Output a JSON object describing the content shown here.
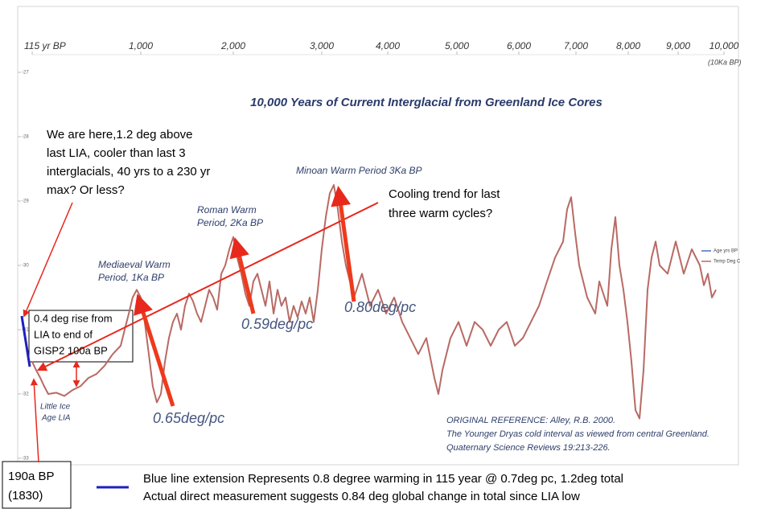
{
  "chart_data": {
    "type": "line",
    "title": "10,000 Years of Current Interglacial from Greenland Ice Cores",
    "x_axis_note": "(10Ka BP)",
    "xlim": [
      115,
      10000
    ],
    "xticks": [
      {
        "value": 115,
        "label": "115 yr BP"
      },
      {
        "value": 1000,
        "label": "1,000"
      },
      {
        "value": 2000,
        "label": "2,000"
      },
      {
        "value": 3000,
        "label": "3,000"
      },
      {
        "value": 4000,
        "label": "4,000"
      },
      {
        "value": 5000,
        "label": "5,000"
      },
      {
        "value": 6000,
        "label": "6,000"
      },
      {
        "value": 7000,
        "label": "7,000"
      },
      {
        "value": 8000,
        "label": "8,000"
      },
      {
        "value": 9000,
        "label": "9,000"
      },
      {
        "value": 10000,
        "label": "10,000"
      }
    ],
    "ylim": [
      -33,
      -26.6
    ],
    "yticks": [
      -33,
      -32,
      -31,
      -30,
      -29,
      -28,
      -27
    ],
    "x": [
      115,
      148,
      181,
      213,
      246,
      312,
      377,
      443,
      508,
      574,
      639,
      705,
      771,
      836,
      869,
      902,
      934,
      967,
      1000,
      1043,
      1087,
      1130,
      1174,
      1217,
      1261,
      1304,
      1348,
      1391,
      1435,
      1478,
      1522,
      1565,
      1609,
      1652,
      1696,
      1739,
      1783,
      1826,
      1870,
      1913,
      1957,
      2000,
      2045,
      2091,
      2136,
      2182,
      2227,
      2273,
      2318,
      2364,
      2409,
      2455,
      2500,
      2545,
      2591,
      2636,
      2682,
      2727,
      2773,
      2818,
      2864,
      2909,
      2955,
      3000,
      3061,
      3122,
      3183,
      3244,
      3305,
      3366,
      3427,
      3488,
      3610,
      3732,
      3854,
      3976,
      4093,
      4209,
      4326,
      4442,
      4558,
      4674,
      4733,
      4791,
      4907,
      5026,
      5156,
      5286,
      5416,
      5545,
      5675,
      5805,
      5935,
      6070,
      6211,
      6352,
      6493,
      6634,
      6775,
      6845,
      6915,
      6986,
      7062,
      7215,
      7369,
      7446,
      7600,
      7677,
      7754,
      7831,
      7908,
      7985,
      8065,
      8145,
      8226,
      8306,
      8387,
      8468,
      8548,
      8629,
      8790,
      8952,
      9123,
      9298,
      9474,
      9561,
      9649,
      9737,
      9825
    ],
    "series": [
      {
        "name": "Temp Deg C",
        "color": "#b86a64",
        "values": [
          -31.5,
          -31.63,
          -31.75,
          -31.88,
          -32,
          -31.98,
          -32.03,
          -31.94,
          -31.88,
          -31.75,
          -31.69,
          -31.56,
          -31.38,
          -31.25,
          -31,
          -30.75,
          -30.5,
          -30.38,
          -30.5,
          -30.88,
          -31.38,
          -31.88,
          -32.13,
          -32,
          -31.5,
          -31.13,
          -30.88,
          -30.75,
          -31,
          -30.63,
          -30.44,
          -30.56,
          -30.75,
          -30.88,
          -30.63,
          -30.38,
          -30.5,
          -30.69,
          -30.13,
          -30,
          -29.75,
          -29.56,
          -29.88,
          -30.13,
          -30.44,
          -30.63,
          -30.25,
          -30.13,
          -30.38,
          -30.63,
          -30.25,
          -30.75,
          -30.38,
          -30.63,
          -30.5,
          -30.88,
          -30.63,
          -30.81,
          -30.56,
          -30.75,
          -30.5,
          -30.88,
          -30.38,
          -29.75,
          -29.25,
          -28.88,
          -28.75,
          -29.13,
          -29.63,
          -30,
          -30.25,
          -30.5,
          -30.13,
          -30.63,
          -30.38,
          -30.75,
          -30.5,
          -30.88,
          -31.13,
          -31.38,
          -31.13,
          -31.75,
          -32,
          -31.63,
          -31.13,
          -30.88,
          -31.25,
          -30.88,
          -31,
          -31.25,
          -31,
          -30.88,
          -31.25,
          -31.13,
          -30.88,
          -30.63,
          -30.25,
          -29.88,
          -29.63,
          -29.13,
          -28.94,
          -29.5,
          -30,
          -30.5,
          -30.75,
          -30.25,
          -30.63,
          -29.75,
          -29.25,
          -30,
          -30.38,
          -30.88,
          -31.5,
          -32.25,
          -32.38,
          -31.63,
          -30.38,
          -29.88,
          -29.63,
          -30,
          -30.13,
          -29.63,
          -30.13,
          -29.75,
          -30,
          -30.31,
          -30.13,
          -30.5,
          -30.38
        ]
      }
    ],
    "other_legend_entries": [
      {
        "name": "Age yrs BP",
        "color": "#4a6fb5"
      }
    ],
    "period_labels": [
      {
        "lines": [
          "Mediaeval Warm",
          "Period, 1Ka BP"
        ]
      },
      {
        "lines": [
          "Roman Warm",
          "Period, 2Ka BP"
        ]
      },
      {
        "lines": [
          "Minoan Warm Period 3Ka BP"
        ]
      },
      {
        "lines": [
          "Little Ice",
          "Age LIA"
        ]
      }
    ],
    "rate_labels": [
      "0.65deg/pc",
      "0.59deg/pc",
      "0.80deg/pc"
    ],
    "reference": [
      "ORIGINAL REFERENCE: Alley, R.B. 2000.",
      "The Younger Dryas cold interval as viewed from central Greenland.",
      "Quaternary Science Reviews 19:213-226."
    ],
    "callouts": [
      {
        "lines": [
          "We are here,1.2 deg above",
          "last LIA, cooler than last 3",
          "interglacials, 40 yrs to a 230 yr",
          "max? Or less?"
        ]
      },
      {
        "lines": [
          "Cooling trend for last",
          "three warm cycles?"
        ]
      },
      {
        "lines": [
          "0.4 deg rise from",
          "LIA to end of",
          "GISP2 100a BP"
        ]
      },
      {
        "lines": [
          "190a BP",
          "(1830)"
        ]
      }
    ],
    "footer_legend": {
      "color": "#1f1fbf",
      "lines": [
        "Blue line extension Represents 0.8 degree warming in 115 year @ 0.7deg pc, 1.2deg total",
        "Actual direct measurement suggests 0.84 deg global change in total since LIA low"
      ]
    }
  }
}
